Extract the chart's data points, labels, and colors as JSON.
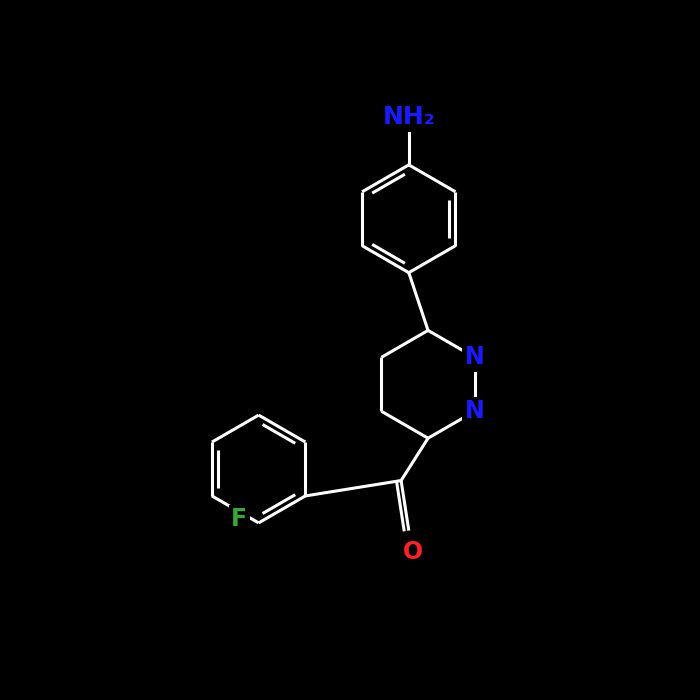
{
  "background_color": "#000000",
  "bond_color": "#ffffff",
  "bond_width": 2.2,
  "atom_colors": {
    "N": "#1a1aff",
    "O": "#ff2020",
    "F": "#33aa33",
    "C": "#ffffff"
  },
  "font_size": 17,
  "nh2_font_size": 18
}
